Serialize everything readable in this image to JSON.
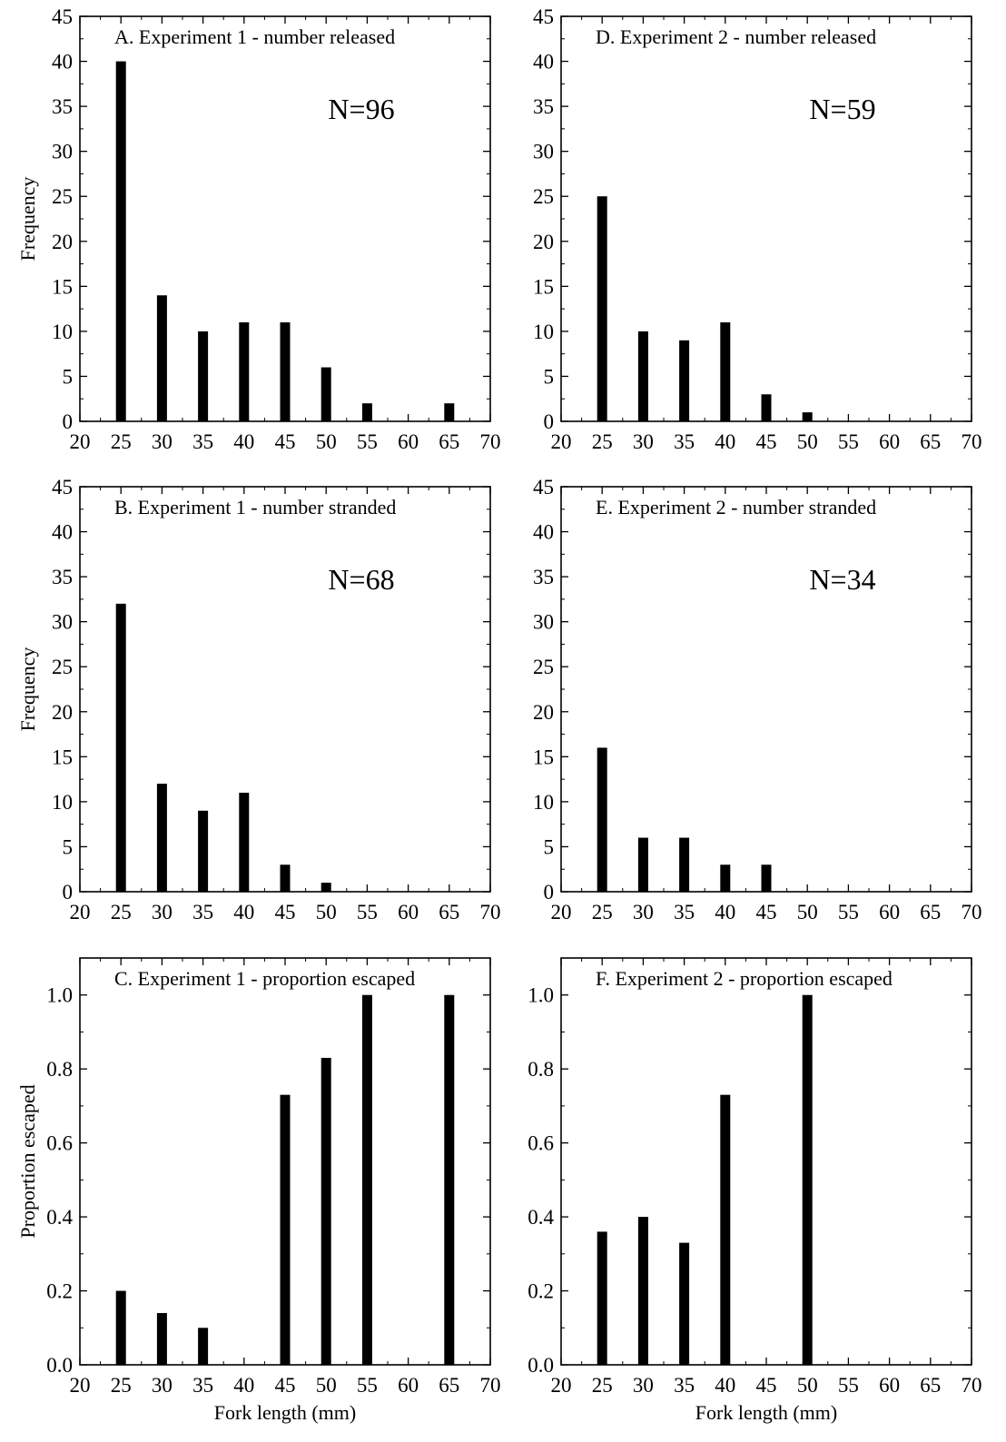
{
  "chart_data": [
    {
      "id": "A",
      "type": "bar",
      "title": "A. Experiment 1 - number released",
      "annotation": "N=96",
      "xlabel": "",
      "ylabel": "Frequency",
      "xlim": [
        20,
        70
      ],
      "ylim": [
        0,
        45
      ],
      "xticks": [
        20,
        25,
        30,
        35,
        40,
        45,
        50,
        55,
        60,
        65,
        70
      ],
      "yticks": [
        0,
        5,
        10,
        15,
        20,
        25,
        30,
        35,
        40,
        45
      ],
      "x": [
        25,
        30,
        35,
        40,
        45,
        50,
        55,
        65
      ],
      "values": [
        40,
        14,
        10,
        11,
        11,
        6,
        2,
        2
      ]
    },
    {
      "id": "D",
      "type": "bar",
      "title": "D. Experiment 2 - number released",
      "annotation": "N=59",
      "xlabel": "",
      "ylabel": "",
      "xlim": [
        20,
        70
      ],
      "ylim": [
        0,
        45
      ],
      "xticks": [
        20,
        25,
        30,
        35,
        40,
        45,
        50,
        55,
        60,
        65,
        70
      ],
      "yticks": [
        0,
        5,
        10,
        15,
        20,
        25,
        30,
        35,
        40,
        45
      ],
      "x": [
        25,
        30,
        35,
        40,
        45,
        50
      ],
      "values": [
        25,
        10,
        9,
        11,
        3,
        1
      ]
    },
    {
      "id": "B",
      "type": "bar",
      "title": "B. Experiment 1 - number stranded",
      "annotation": "N=68",
      "xlabel": "",
      "ylabel": "Frequency",
      "xlim": [
        20,
        70
      ],
      "ylim": [
        0,
        45
      ],
      "xticks": [
        20,
        25,
        30,
        35,
        40,
        45,
        50,
        55,
        60,
        65,
        70
      ],
      "yticks": [
        0,
        5,
        10,
        15,
        20,
        25,
        30,
        35,
        40,
        45
      ],
      "x": [
        25,
        30,
        35,
        40,
        45,
        50
      ],
      "values": [
        32,
        12,
        9,
        11,
        3,
        1
      ]
    },
    {
      "id": "E",
      "type": "bar",
      "title": "E. Experiment 2 - number stranded",
      "annotation": "N=34",
      "xlabel": "",
      "ylabel": "",
      "xlim": [
        20,
        70
      ],
      "ylim": [
        0,
        45
      ],
      "xticks": [
        20,
        25,
        30,
        35,
        40,
        45,
        50,
        55,
        60,
        65,
        70
      ],
      "yticks": [
        0,
        5,
        10,
        15,
        20,
        25,
        30,
        35,
        40,
        45
      ],
      "x": [
        25,
        30,
        35,
        40,
        45
      ],
      "values": [
        16,
        6,
        6,
        3,
        3
      ]
    },
    {
      "id": "C",
      "type": "bar",
      "title": "C. Experiment 1 - proportion escaped",
      "annotation": "",
      "xlabel": "Fork length (mm)",
      "ylabel": "Proportion escaped",
      "xlim": [
        20,
        70
      ],
      "ylim": [
        0,
        1.1
      ],
      "xticks": [
        20,
        25,
        30,
        35,
        40,
        45,
        50,
        55,
        60,
        65,
        70
      ],
      "yticks": [
        "0.0",
        "0.2",
        "0.4",
        "0.6",
        "0.8",
        "1.0"
      ],
      "x": [
        25,
        30,
        35,
        45,
        50,
        55,
        65
      ],
      "values": [
        0.2,
        0.14,
        0.1,
        0.73,
        0.83,
        1.0,
        1.0
      ]
    },
    {
      "id": "F",
      "type": "bar",
      "title": "F. Experiment 2 - proportion escaped",
      "annotation": "",
      "xlabel": "Fork length (mm)",
      "ylabel": "",
      "xlim": [
        20,
        70
      ],
      "ylim": [
        0,
        1.1
      ],
      "xticks": [
        20,
        25,
        30,
        35,
        40,
        45,
        50,
        55,
        60,
        65,
        70
      ],
      "yticks": [
        "0.0",
        "0.2",
        "0.4",
        "0.6",
        "0.8",
        "1.0"
      ],
      "x": [
        25,
        30,
        35,
        40,
        50
      ],
      "values": [
        0.36,
        0.4,
        0.33,
        0.73,
        1.0
      ]
    }
  ],
  "colors": {
    "bar": "#000000",
    "axis": "#000000",
    "background": "#ffffff"
  }
}
